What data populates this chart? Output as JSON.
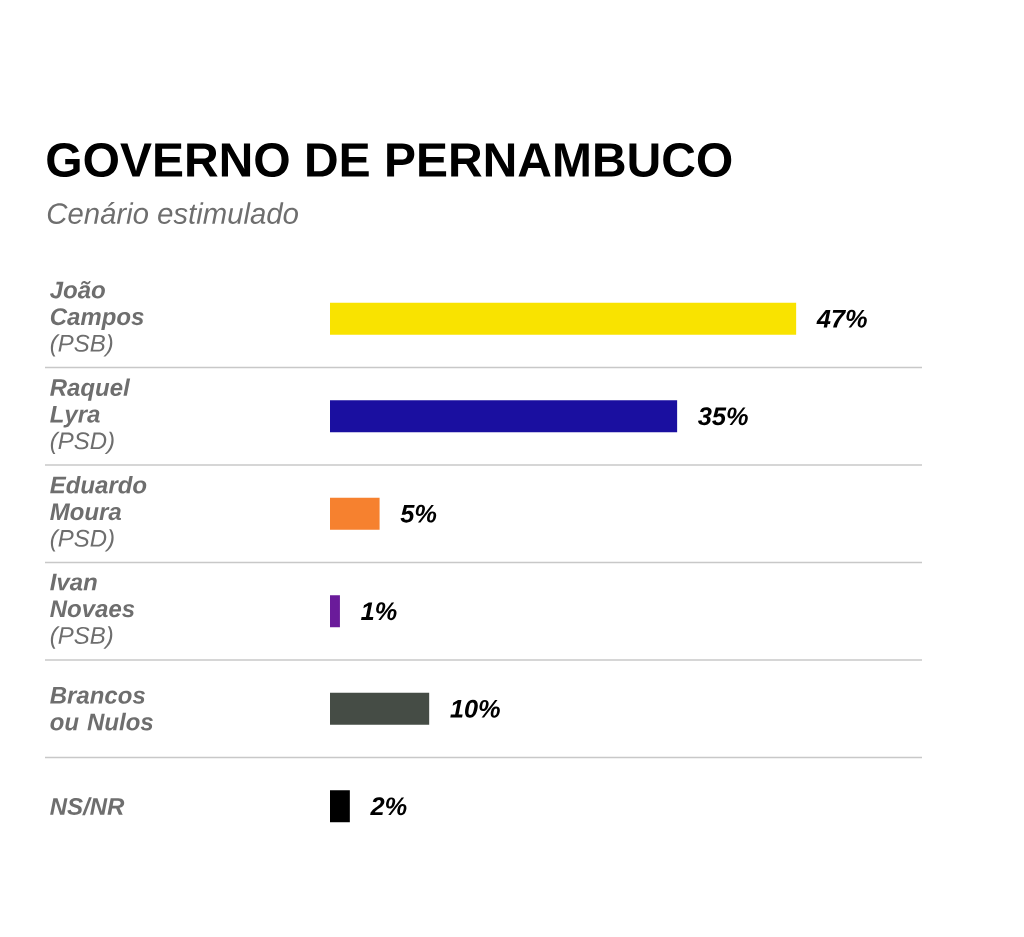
{
  "chart_data": {
    "type": "bar",
    "orientation": "horizontal",
    "title": "GOVERNO DE PERNAMBUCO",
    "subtitle": "Cenário estimulado",
    "categories": [
      "**João Campos** (PSB)",
      "**Raquel Lyra** (PSD)",
      "**Eduardo Moura** (PSD)",
      "**Ivan Novaes** (PSB)",
      "**Brancos ou Nulos**",
      "**NS/NR**"
    ],
    "values": [
      47,
      35,
      5,
      1,
      10,
      2
    ],
    "value_labels": [
      "47%",
      "35%",
      "5%",
      "1%",
      "10%",
      "2%"
    ],
    "colors": [
      "#f9e300",
      "#1a0fa0",
      "#f6812f",
      "#6a1b9a",
      "#454c45",
      "#000000"
    ],
    "grid": true
  }
}
